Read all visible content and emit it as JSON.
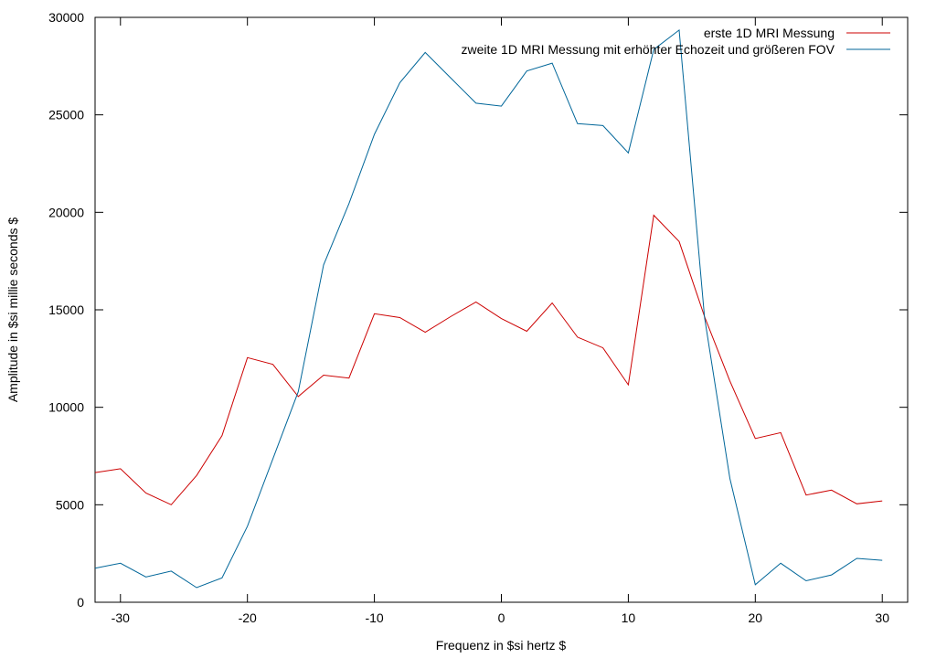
{
  "chart_data": {
    "type": "line",
    "title": "",
    "xlabel": "Frequenz in $si hertz $",
    "ylabel": "Amplitude in $si millie seconds $",
    "xlim": [
      -32,
      32
    ],
    "ylim": [
      0,
      30000
    ],
    "xticks": [
      -30,
      -20,
      -10,
      0,
      10,
      20,
      30
    ],
    "yticks": [
      0,
      5000,
      10000,
      15000,
      20000,
      25000,
      30000
    ],
    "xtick_labels": [
      "-30",
      "-20",
      "-10",
      "0",
      "10",
      "20",
      "30"
    ],
    "ytick_labels": [
      "0",
      "5000",
      "10000",
      "15000",
      "20000",
      "25000",
      "30000"
    ],
    "grid": false,
    "legend_position": "top-right",
    "x": [
      -32,
      -30,
      -28,
      -26,
      -24,
      -22,
      -20,
      -18,
      -16,
      -14,
      -12,
      -10,
      -8,
      -6,
      -4,
      -2,
      0,
      2,
      4,
      6,
      8,
      10,
      12,
      14,
      16,
      18,
      20,
      22,
      24,
      26,
      28,
      30
    ],
    "series": [
      {
        "name": "erste 1D MRI Messung",
        "color": "#cc0000",
        "values": [
          6650,
          6850,
          5600,
          5000,
          6500,
          8550,
          12550,
          12200,
          10550,
          11650,
          11500,
          14800,
          14600,
          13850,
          14650,
          15400,
          14550,
          13900,
          15350,
          13600,
          13050,
          11150,
          19850,
          18500,
          14650,
          11350,
          8400,
          8700,
          5500,
          5750,
          5050,
          5200
        ]
      },
      {
        "name": "zweite 1D MRI Messung mit erhöhter Echozeit und größeren FOV",
        "color": "#006699",
        "values": [
          1750,
          2000,
          1300,
          1600,
          750,
          1250,
          3900,
          7350,
          10800,
          17300,
          20450,
          24000,
          26650,
          28200,
          26900,
          25600,
          25450,
          27250,
          27650,
          24550,
          24450,
          23050,
          28350,
          29350,
          14600,
          6350,
          900,
          2000,
          1100,
          1400,
          2250,
          2150
        ]
      }
    ]
  }
}
